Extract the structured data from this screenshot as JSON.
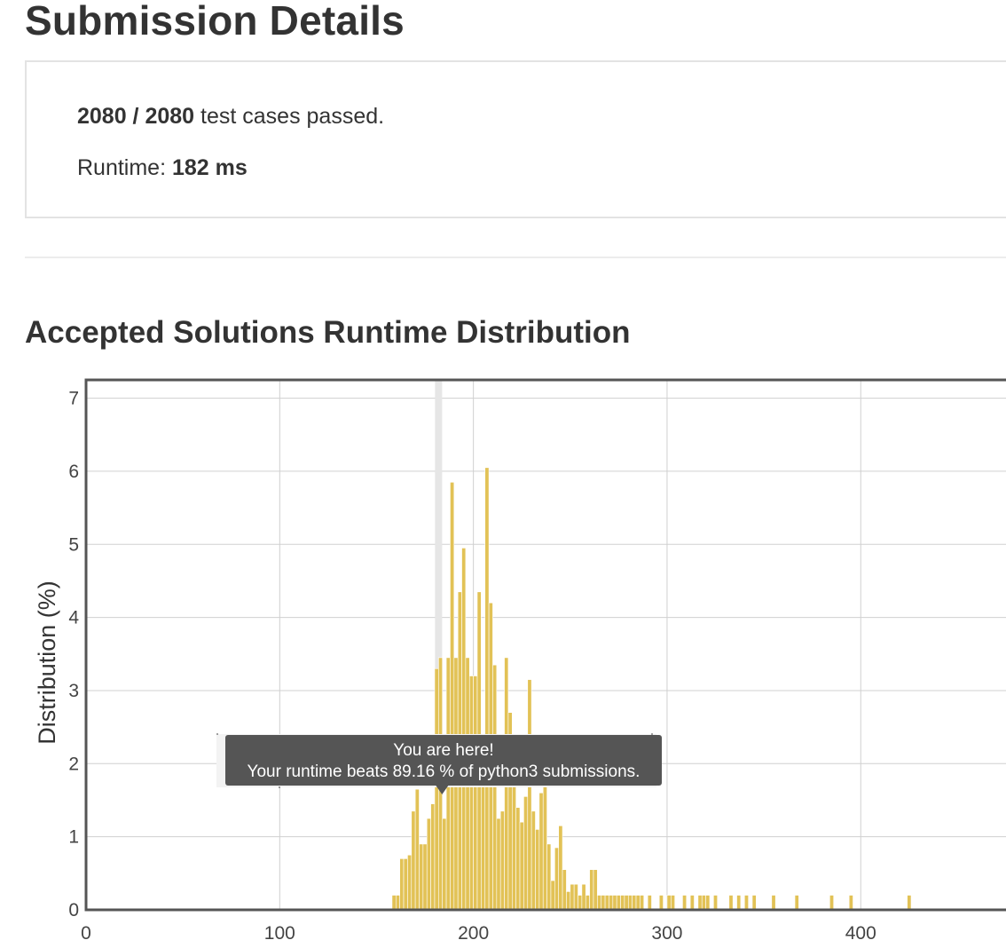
{
  "page": {
    "title": "Submission Details"
  },
  "summary": {
    "passed": "2080 / 2080",
    "passed_suffix": " test cases passed.",
    "runtime_label": "Runtime: ",
    "runtime_value": "182 ms"
  },
  "section_title": "Accepted Solutions Runtime Distribution",
  "colors": {
    "bar": "#e2c256",
    "bar_stroke": "#ffffff",
    "highlight_band": "#e6e6e6",
    "grid": "#d0d0d0",
    "frame": "#555555",
    "tooltip_bg": "#555555"
  },
  "tooltip": {
    "title": "You are here!",
    "body": "Your runtime beats 89.16 % of python3 submissions."
  },
  "chart_data": {
    "type": "bar",
    "xlabel": "",
    "ylabel": "Distribution (%)",
    "xlim": [
      0,
      475
    ],
    "ylim": [
      0,
      7.25
    ],
    "x_ticks": [
      0,
      100,
      200,
      300,
      400
    ],
    "y_ticks": [
      0,
      1,
      2,
      3,
      4,
      5,
      6,
      7
    ],
    "grid": true,
    "highlight_x": 182,
    "bin_width": 2,
    "x": [
      159,
      161,
      163,
      165,
      167,
      169,
      171,
      173,
      175,
      177,
      179,
      181,
      183,
      185,
      187,
      189,
      191,
      193,
      195,
      197,
      199,
      201,
      203,
      205,
      207,
      209,
      211,
      213,
      215,
      217,
      219,
      221,
      223,
      225,
      227,
      229,
      231,
      233,
      235,
      237,
      239,
      241,
      243,
      245,
      247,
      249,
      251,
      253,
      255,
      257,
      259,
      261,
      263,
      265,
      267,
      269,
      271,
      273,
      275,
      277,
      279,
      281,
      283,
      285,
      287,
      291,
      297,
      301,
      303,
      309,
      313,
      317,
      319,
      321,
      325,
      333,
      337,
      341,
      345,
      355,
      367,
      385,
      395,
      425
    ],
    "values": [
      0.2,
      0.2,
      0.7,
      0.7,
      0.75,
      1.35,
      1.65,
      0.9,
      0.9,
      1.25,
      1.45,
      3.3,
      3.45,
      1.25,
      3.45,
      5.85,
      3.45,
      4.35,
      4.95,
      3.45,
      3.2,
      3.2,
      4.35,
      1.75,
      6.05,
      4.2,
      3.35,
      1.25,
      1.35,
      3.45,
      2.7,
      1.75,
      1.4,
      1.2,
      1.55,
      3.15,
      1.35,
      1.1,
      1.6,
      1.75,
      0.9,
      0.4,
      0.85,
      1.15,
      0.55,
      0.25,
      0.35,
      0.35,
      0.2,
      0.35,
      0.2,
      0.55,
      0.55,
      0.2,
      0.2,
      0.2,
      0.2,
      0.2,
      0.2,
      0.2,
      0.2,
      0.2,
      0.2,
      0.2,
      0.2,
      0.2,
      0.2,
      0.2,
      0.2,
      0.2,
      0.2,
      0.2,
      0.2,
      0.2,
      0.2,
      0.2,
      0.2,
      0.2,
      0.2,
      0.2,
      0.2,
      0.2,
      0.2,
      0.2
    ]
  }
}
